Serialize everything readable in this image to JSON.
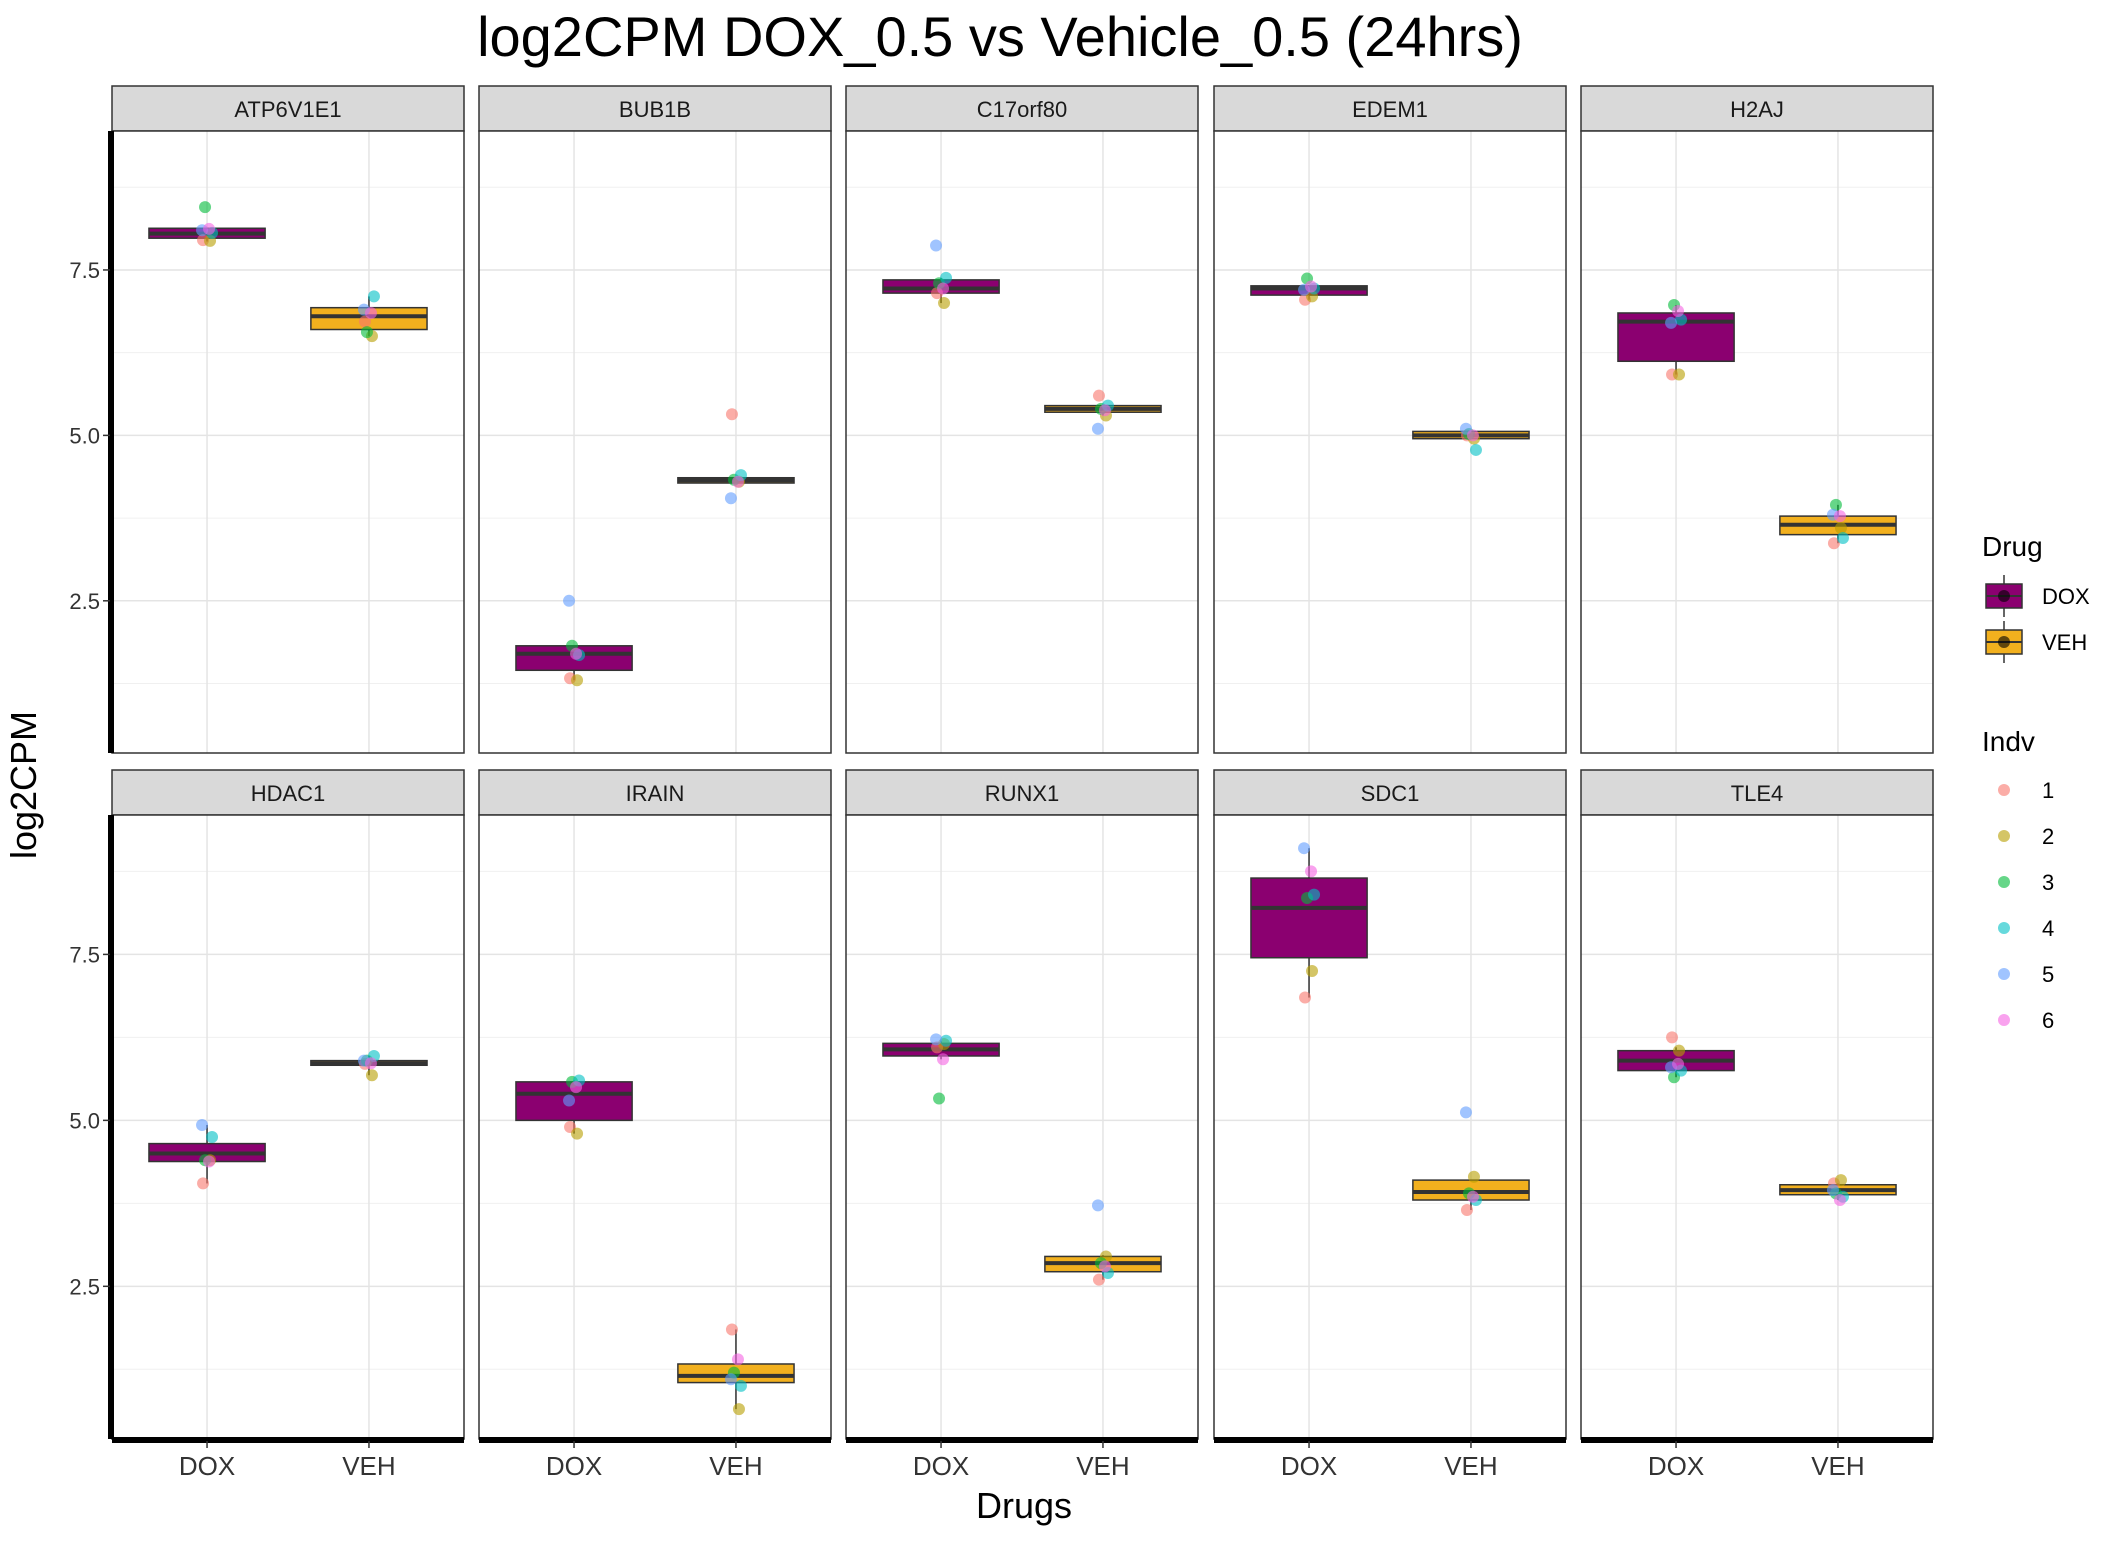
{
  "chart_data": {
    "type": "boxplot",
    "title": "log2CPM DOX_0.5 vs Vehicle_0.5 (24hrs)",
    "xlabel": "Drugs",
    "ylabel": "log2CPM",
    "ylim": [
      0.2,
      9.6
    ],
    "y_ticks": [
      2.5,
      5.0,
      7.5
    ],
    "y_tick_labels": [
      "2.5",
      "5.0",
      "7.5"
    ],
    "categories": [
      "DOX",
      "VEH"
    ],
    "grid": true,
    "legend_position": "right",
    "legend": {
      "drug": {
        "title": "Drug",
        "entries": [
          {
            "label": "DOX",
            "color": "#8B0070"
          },
          {
            "label": "VEH",
            "color": "#F2B01E"
          }
        ]
      },
      "indv": {
        "title": "Indv",
        "entries": [
          {
            "label": "1",
            "color": "#F8766D"
          },
          {
            "label": "2",
            "color": "#B79F00"
          },
          {
            "label": "3",
            "color": "#00BA38"
          },
          {
            "label": "4",
            "color": "#00BFC4"
          },
          {
            "label": "5",
            "color": "#619CFF"
          },
          {
            "label": "6",
            "color": "#F564E3"
          }
        ]
      }
    },
    "panels": [
      {
        "gene": "ATP6V1E1",
        "DOX": {
          "q1": 7.98,
          "median": 8.05,
          "q3": 8.13,
          "low": 7.93,
          "high": 8.13,
          "points": [
            7.95,
            7.94,
            8.45,
            8.06,
            8.1,
            8.12
          ]
        },
        "VEH": {
          "q1": 6.6,
          "median": 6.8,
          "q3": 6.93,
          "low": 6.5,
          "high": 7.1,
          "points": [
            6.72,
            6.5,
            6.56,
            7.1,
            6.9,
            6.85
          ]
        }
      },
      {
        "gene": "BUB1B",
        "DOX": {
          "q1": 1.45,
          "median": 1.7,
          "q3": 1.82,
          "low": 1.3,
          "high": 1.82,
          "points": [
            1.33,
            1.3,
            1.82,
            1.68,
            2.5,
            1.7
          ]
        },
        "VEH": {
          "q1": 4.28,
          "median": 4.32,
          "q3": 4.36,
          "low": 4.28,
          "high": 4.36,
          "points": [
            5.32,
            4.3,
            4.33,
            4.4,
            4.05,
            4.3
          ]
        }
      },
      {
        "gene": "C17orf80",
        "DOX": {
          "q1": 7.15,
          "median": 7.22,
          "q3": 7.35,
          "low": 7.0,
          "high": 7.38,
          "points": [
            7.15,
            7.0,
            7.3,
            7.38,
            7.87,
            7.22
          ]
        },
        "VEH": {
          "q1": 5.35,
          "median": 5.4,
          "q3": 5.45,
          "low": 5.3,
          "high": 5.45,
          "points": [
            5.6,
            5.3,
            5.4,
            5.45,
            5.1,
            5.38
          ]
        }
      },
      {
        "gene": "EDEM1",
        "DOX": {
          "q1": 7.12,
          "median": 7.22,
          "q3": 7.26,
          "low": 7.05,
          "high": 7.26,
          "points": [
            7.05,
            7.1,
            7.37,
            7.22,
            7.2,
            7.25
          ]
        },
        "VEH": {
          "q1": 4.95,
          "median": 5.0,
          "q3": 5.06,
          "low": 4.95,
          "high": 5.06,
          "points": [
            5.0,
            4.95,
            5.02,
            4.78,
            5.1,
            5.0
          ]
        }
      },
      {
        "gene": "H2AJ",
        "DOX": {
          "q1": 6.12,
          "median": 6.72,
          "q3": 6.85,
          "low": 5.92,
          "high": 6.97,
          "points": [
            5.92,
            5.92,
            6.97,
            6.75,
            6.7,
            6.88
          ]
        },
        "VEH": {
          "q1": 3.5,
          "median": 3.65,
          "q3": 3.78,
          "low": 3.37,
          "high": 3.95,
          "points": [
            3.37,
            3.6,
            3.95,
            3.45,
            3.8,
            3.78
          ]
        }
      },
      {
        "gene": "HDAC1",
        "DOX": {
          "q1": 4.38,
          "median": 4.5,
          "q3": 4.65,
          "low": 4.05,
          "high": 4.93,
          "points": [
            4.05,
            4.4,
            4.4,
            4.75,
            4.93,
            4.38
          ]
        },
        "VEH": {
          "q1": 5.83,
          "median": 5.86,
          "q3": 5.9,
          "low": 5.68,
          "high": 5.97,
          "points": [
            5.85,
            5.68,
            5.9,
            5.97,
            5.9,
            5.86
          ]
        }
      },
      {
        "gene": "IRAIN",
        "DOX": {
          "q1": 5.0,
          "median": 5.4,
          "q3": 5.58,
          "low": 4.8,
          "high": 5.6,
          "points": [
            4.9,
            4.8,
            5.58,
            5.6,
            5.3,
            5.5
          ]
        },
        "VEH": {
          "q1": 1.05,
          "median": 1.15,
          "q3": 1.33,
          "low": 0.65,
          "high": 1.85,
          "points": [
            1.85,
            0.65,
            1.2,
            1.0,
            1.1,
            1.4
          ]
        }
      },
      {
        "gene": "RUNX1",
        "DOX": {
          "q1": 5.97,
          "median": 6.07,
          "q3": 6.16,
          "low": 5.92,
          "high": 6.2,
          "points": [
            6.1,
            6.15,
            5.33,
            6.2,
            6.22,
            5.92
          ]
        },
        "VEH": {
          "q1": 2.72,
          "median": 2.85,
          "q3": 2.95,
          "low": 2.6,
          "high": 2.97,
          "points": [
            2.6,
            2.95,
            2.85,
            2.7,
            3.72,
            2.8
          ]
        }
      },
      {
        "gene": "SDC1",
        "DOX": {
          "q1": 7.45,
          "median": 8.2,
          "q3": 8.65,
          "low": 6.85,
          "high": 9.1,
          "points": [
            6.85,
            7.25,
            8.35,
            8.4,
            9.1,
            8.75
          ]
        },
        "VEH": {
          "q1": 3.8,
          "median": 3.92,
          "q3": 4.1,
          "low": 3.65,
          "high": 4.1,
          "points": [
            3.65,
            4.15,
            3.9,
            3.8,
            5.12,
            3.85
          ]
        }
      },
      {
        "gene": "TLE4",
        "DOX": {
          "q1": 5.75,
          "median": 5.9,
          "q3": 6.05,
          "low": 5.65,
          "high": 6.1,
          "points": [
            6.25,
            6.05,
            5.65,
            5.75,
            5.8,
            5.85
          ]
        },
        "VEH": {
          "q1": 3.88,
          "median": 3.95,
          "q3": 4.03,
          "low": 3.8,
          "high": 4.05,
          "points": [
            4.05,
            4.1,
            3.9,
            3.85,
            3.95,
            3.8
          ]
        }
      }
    ]
  }
}
